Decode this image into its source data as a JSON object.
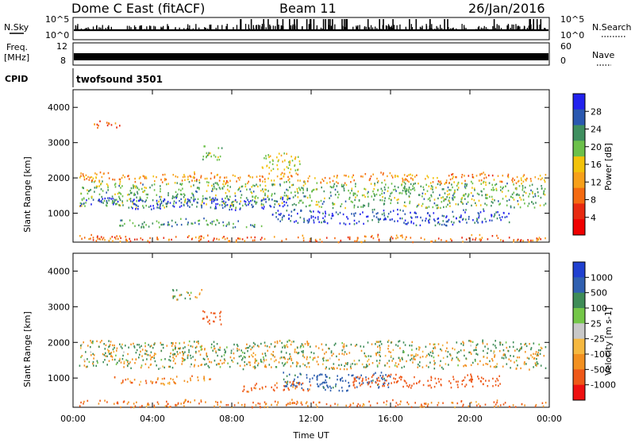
{
  "header": {
    "title": "Dome C East (fitACF)",
    "beam": "Beam 11",
    "date": "26/Jan/2016"
  },
  "left_labels": {
    "nsky": "N.Sky",
    "freq": "Freq.",
    "mhz": "[MHz]",
    "cpid": "CPID"
  },
  "right_labels": {
    "nsearch": "N.Search",
    "nave": "Nave"
  },
  "strip_axes": {
    "noise_left_top": "10^5",
    "noise_left_bottom": "10^0",
    "noise_right_top": "10^5",
    "noise_right_bottom": "10^0",
    "freq_left_top": "12",
    "freq_left_bottom": "8",
    "nave_right_top": "60",
    "nave_right_bottom": "0"
  },
  "cpid_text": "twofsound 3501",
  "colors": {
    "power": [
      "#2222ee",
      "#2a58b0",
      "#3f8f5f",
      "#6cc04a",
      "#f2c20a",
      "#f7a01a",
      "#f46a10",
      "#e82a10",
      "#f00000"
    ],
    "velocity": [
      "#2040d0",
      "#3060b0",
      "#3e8c57",
      "#74c648",
      "#c8c8c8",
      "#f5b840",
      "#f29020",
      "#ee5818",
      "#ee1010"
    ]
  },
  "chart_data": [
    {
      "type": "heatmap",
      "panel": "power",
      "ylabel": "Slant Range [km]",
      "xlabel": "",
      "x_ticks": [
        "00:00",
        "04:00",
        "08:00",
        "12:00",
        "16:00",
        "20:00",
        "00:00"
      ],
      "y_ticks": [
        "1000",
        "2000",
        "3000",
        "4000"
      ],
      "xlim_hours": [
        0,
        24
      ],
      "ylim_km": [
        180,
        4500
      ],
      "colorbar": {
        "label": "Power [dB]",
        "ticks": [
          "4",
          "8",
          "12",
          "16",
          "20",
          "24",
          "28"
        ],
        "range": [
          0,
          30
        ]
      },
      "bands": [
        {
          "t0": 0.3,
          "t1": 23.8,
          "r0": 1200,
          "r1": 1900,
          "level": 20
        },
        {
          "t0": 0.3,
          "t1": 11.0,
          "r0": 1150,
          "r1": 1450,
          "level": 28
        },
        {
          "t0": 10.0,
          "t1": 22.0,
          "r0": 700,
          "r1": 1100,
          "level": 27
        },
        {
          "t0": 2.0,
          "t1": 9.5,
          "r0": 650,
          "r1": 850,
          "level": 22
        },
        {
          "t0": 0.3,
          "t1": 23.8,
          "r0": 1900,
          "r1": 2150,
          "level": 10
        },
        {
          "t0": 6.5,
          "t1": 7.5,
          "r0": 2500,
          "r1": 2900,
          "level": 19
        },
        {
          "t0": 9.5,
          "t1": 11.5,
          "r0": 2200,
          "r1": 2700,
          "level": 15
        },
        {
          "t0": 1.0,
          "t1": 2.5,
          "r0": 3400,
          "r1": 3600,
          "level": 7
        },
        {
          "t0": 0.3,
          "t1": 23.8,
          "r0": 200,
          "r1": 380,
          "level": 8
        }
      ]
    },
    {
      "type": "heatmap",
      "panel": "velocity",
      "ylabel": "Slant Range [km]",
      "xlabel": "Time UT",
      "x_ticks": [
        "00:00",
        "04:00",
        "08:00",
        "12:00",
        "16:00",
        "20:00",
        "00:00"
      ],
      "y_ticks": [
        "1000",
        "2000",
        "3000",
        "4000"
      ],
      "xlim_hours": [
        0,
        24
      ],
      "ylim_km": [
        180,
        4500
      ],
      "colorbar": {
        "label": "Velocity [m s-1]",
        "ticks": [
          "1000",
          "500",
          "100",
          "25",
          "-25",
          "-100",
          "-500",
          "-1000"
        ],
        "range": [
          -1200,
          1200
        ]
      },
      "bands": [
        {
          "t0": 0.3,
          "t1": 23.8,
          "r0": 1300,
          "r1": 2050,
          "level": 0
        },
        {
          "t0": 10.5,
          "t1": 16.0,
          "r0": 700,
          "r1": 1150,
          "level": 150
        },
        {
          "t0": 14.0,
          "t1": 21.5,
          "r0": 750,
          "r1": 1100,
          "level": -300
        },
        {
          "t0": 8.5,
          "t1": 12.0,
          "r0": 650,
          "r1": 900,
          "level": -120
        },
        {
          "t0": 2.0,
          "t1": 7.0,
          "r0": 850,
          "r1": 1050,
          "level": -80
        },
        {
          "t0": 6.5,
          "t1": 7.5,
          "r0": 2500,
          "r1": 2900,
          "level": -300
        },
        {
          "t0": 5.0,
          "t1": 6.5,
          "r0": 3200,
          "r1": 3500,
          "level": 0
        },
        {
          "t0": 0.3,
          "t1": 23.8,
          "r0": 200,
          "r1": 380,
          "level": -80
        }
      ]
    }
  ]
}
